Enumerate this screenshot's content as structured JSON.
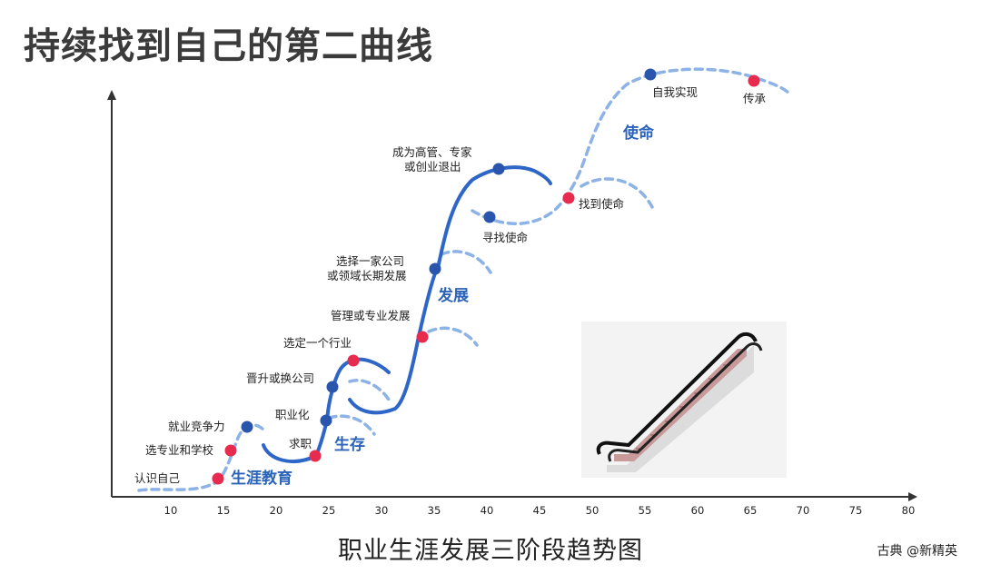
{
  "title": "持续找到自己的第二曲线",
  "caption": "职业生涯发展三阶段趋势图",
  "credit": "古典 @新精英",
  "colors": {
    "curve": "#2e66c7",
    "dashed": "#8db3e6",
    "dot_blue": "#2955ad",
    "dot_red": "#e62b4e",
    "axis": "#333333"
  },
  "x_ticks": [
    "10",
    "15",
    "20",
    "25",
    "30",
    "35",
    "40",
    "45",
    "50",
    "55",
    "60",
    "65",
    "70",
    "75",
    "80"
  ],
  "stages": [
    {
      "label": "生涯教育"
    },
    {
      "label": "生存"
    },
    {
      "label": "发展"
    },
    {
      "label": "使命"
    }
  ],
  "milestones": [
    {
      "lines": [
        "认识自己"
      ],
      "color": "red"
    },
    {
      "lines": [
        "选专业和学校"
      ],
      "color": "red"
    },
    {
      "lines": [
        "就业竞争力"
      ],
      "color": "blue"
    },
    {
      "lines": [
        "求职"
      ],
      "color": "red"
    },
    {
      "lines": [
        "职业化"
      ],
      "color": "blue"
    },
    {
      "lines": [
        "晋升或换公司"
      ],
      "color": "blue"
    },
    {
      "lines": [
        "选定一个行业"
      ],
      "color": "red"
    },
    {
      "lines": [
        "管理或专业发展"
      ],
      "color": "red"
    },
    {
      "lines": [
        "选择一家公司",
        "或领域长期发展"
      ],
      "color": "blue"
    },
    {
      "lines": [
        "成为高管、专家",
        "或创业退出"
      ],
      "color": "blue"
    },
    {
      "lines": [
        "寻找使命"
      ],
      "color": "blue"
    },
    {
      "lines": [
        "找到使命"
      ],
      "color": "red"
    },
    {
      "lines": [
        "自我实现"
      ],
      "color": "blue"
    },
    {
      "lines": [
        "传承"
      ],
      "color": "red"
    }
  ],
  "illustration": {
    "icon": "escalator-icon"
  }
}
